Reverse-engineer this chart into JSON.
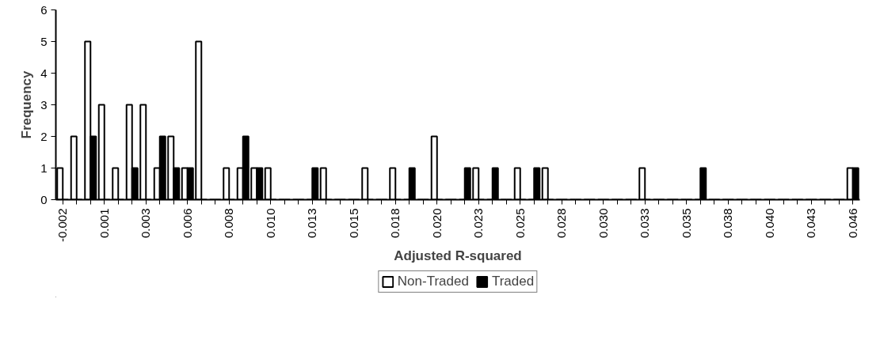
{
  "chart_data": {
    "type": "bar",
    "xlabel": "Adjusted R-squared",
    "ylabel": "Frequency",
    "categories": [
      "-0.002",
      null,
      null,
      "0.001",
      null,
      null,
      "0.003",
      null,
      null,
      "0.006",
      null,
      null,
      "0.008",
      null,
      null,
      "0.010",
      null,
      null,
      "0.013",
      null,
      null,
      "0.015",
      null,
      null,
      "0.018",
      null,
      null,
      "0.020",
      null,
      null,
      "0.023",
      null,
      null,
      "0.025",
      null,
      null,
      "0.028",
      null,
      null,
      "0.030",
      null,
      null,
      "0.033",
      null,
      null,
      "0.035",
      null,
      null,
      "0.038",
      null,
      null,
      "0.040",
      null,
      null,
      "0.043",
      null,
      null,
      "0.046"
    ],
    "series": [
      {
        "name": "Non-Traded",
        "color": "#ffffff",
        "values": [
          1,
          2,
          5,
          3,
          1,
          3,
          3,
          1,
          2,
          1,
          5,
          0,
          1,
          1,
          1,
          1,
          0,
          0,
          0,
          1,
          0,
          0,
          1,
          0,
          1,
          0,
          0,
          2,
          0,
          0,
          1,
          0,
          0,
          1,
          0,
          1,
          0,
          0,
          0,
          0,
          0,
          0,
          1,
          0,
          0,
          0,
          0,
          0,
          0,
          0,
          0,
          0,
          0,
          0,
          0,
          0,
          0,
          1
        ]
      },
      {
        "name": "Traded",
        "color": "#000000",
        "values": [
          0,
          0,
          2,
          0,
          0,
          1,
          0,
          2,
          1,
          1,
          0,
          0,
          0,
          2,
          1,
          0,
          0,
          0,
          1,
          0,
          0,
          0,
          0,
          0,
          0,
          1,
          0,
          0,
          0,
          1,
          0,
          1,
          0,
          0,
          1,
          0,
          0,
          0,
          0,
          0,
          0,
          0,
          0,
          0,
          0,
          0,
          1,
          0,
          0,
          0,
          0,
          0,
          0,
          0,
          0,
          0,
          0,
          1
        ]
      }
    ],
    "ylim": [
      0,
      6
    ],
    "yticks": [
      0,
      1,
      2,
      3,
      4,
      5,
      6
    ],
    "grid": false,
    "legend": "bottom"
  }
}
